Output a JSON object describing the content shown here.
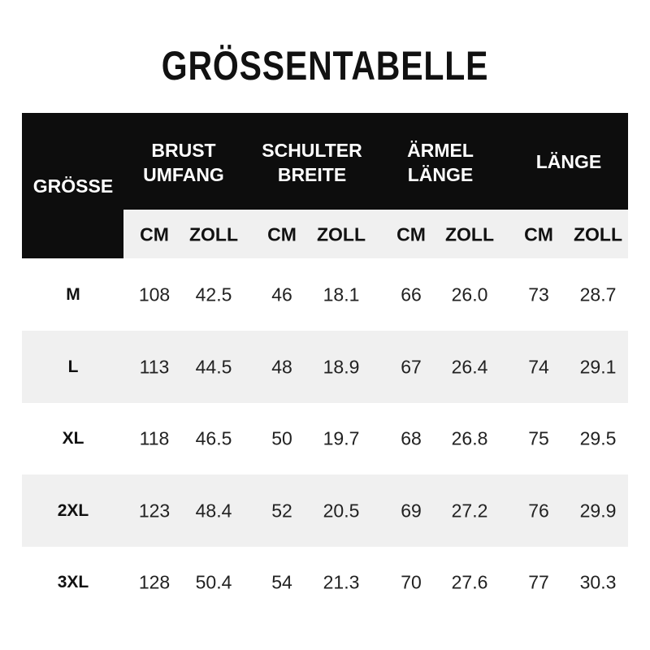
{
  "title": "GRÖSSENTABELLE",
  "size_header": "GRÖSSE",
  "groups": [
    {
      "line1": "BRUST",
      "line2": "UMFANG"
    },
    {
      "line1": "SCHULTER",
      "line2": "BREITE"
    },
    {
      "line1": "ÄRMEL",
      "line2": "LÄNGE"
    },
    {
      "line1": "LÄNGE",
      "line2": ""
    }
  ],
  "units": [
    "CM",
    "ZOLL",
    "CM",
    "ZOLL",
    "CM",
    "ZOLL",
    "CM",
    "ZOLL"
  ],
  "rows": [
    {
      "size": "M",
      "values": [
        "108",
        "42.5",
        "46",
        "18.1",
        "66",
        "26.0",
        "73",
        "28.7"
      ]
    },
    {
      "size": "L",
      "values": [
        "113",
        "44.5",
        "48",
        "18.9",
        "67",
        "26.4",
        "74",
        "29.1"
      ]
    },
    {
      "size": "XL",
      "values": [
        "118",
        "46.5",
        "50",
        "19.7",
        "68",
        "26.8",
        "75",
        "29.5"
      ]
    },
    {
      "size": "2XL",
      "values": [
        "123",
        "48.4",
        "52",
        "20.5",
        "69",
        "27.2",
        "76",
        "29.9"
      ]
    },
    {
      "size": "3XL",
      "values": [
        "128",
        "50.4",
        "54",
        "21.3",
        "70",
        "27.6",
        "77",
        "30.3"
      ]
    }
  ]
}
